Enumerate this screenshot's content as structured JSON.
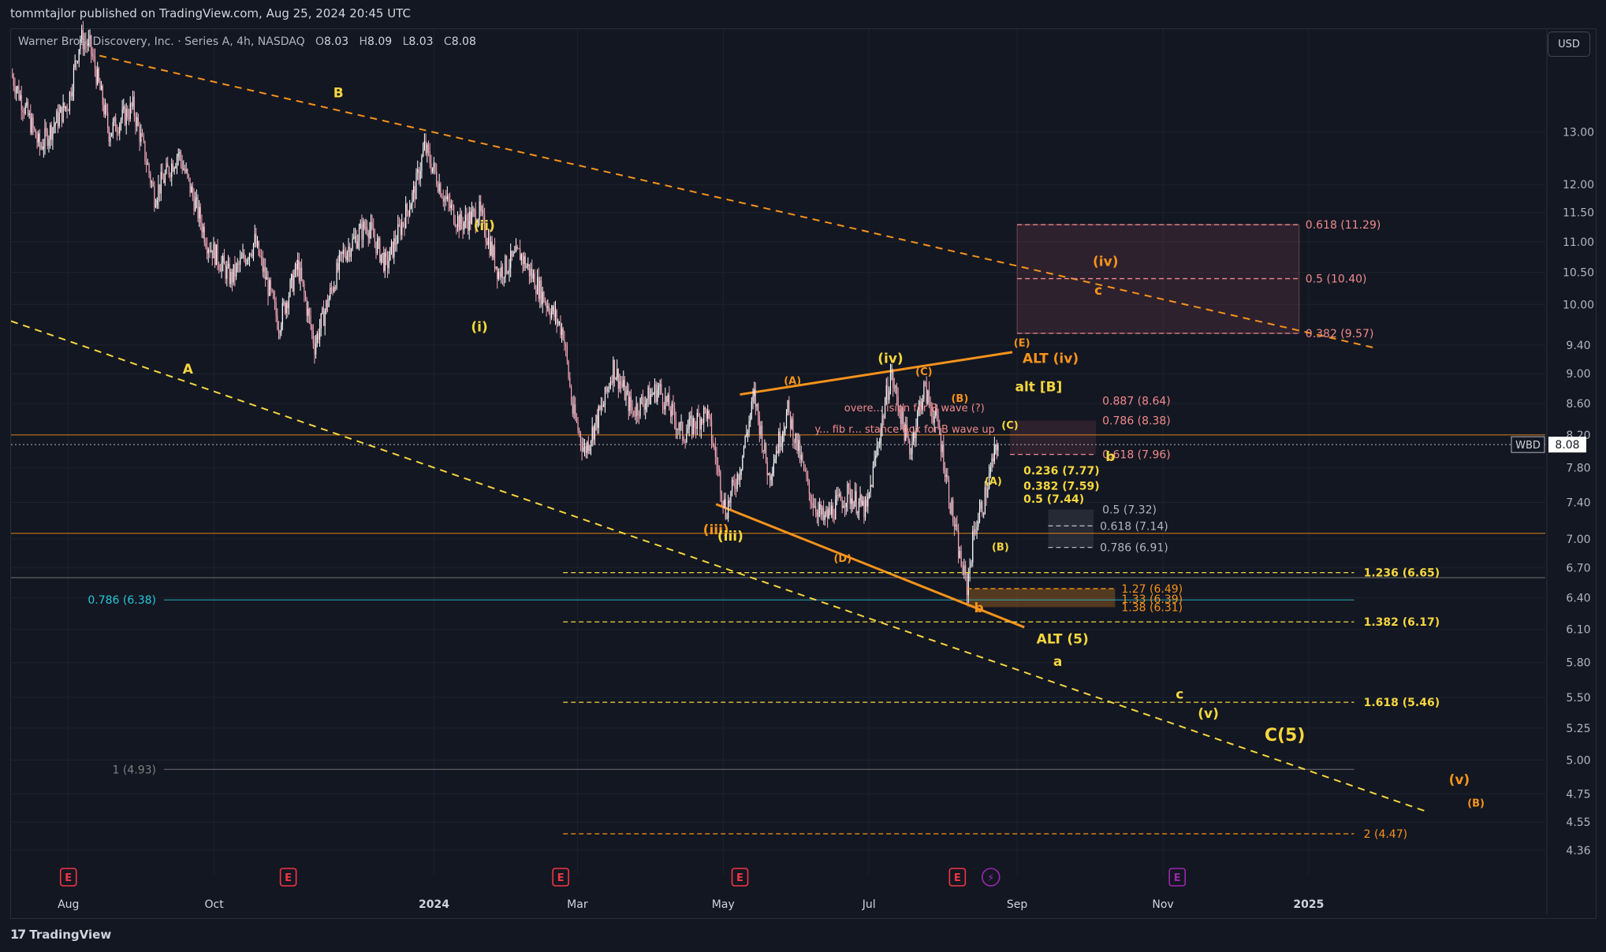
{
  "header": {
    "published_by": "tommtajlor published on TradingView.com, Aug 25, 2024 20:45 UTC"
  },
  "symbol": {
    "name": "Warner Bros. Discovery, Inc. · Series A, 4h, NASDAQ",
    "o_label": "O",
    "o": "8.03",
    "h_label": "H",
    "h": "8.09",
    "l_label": "L",
    "l": "8.03",
    "c_label": "C",
    "c": "8.08"
  },
  "currency": "USD",
  "footer": {
    "brand": "TradingView"
  },
  "colors": {
    "background": "#131722",
    "grid": "#1e222d",
    "candle_up": "#ffffff",
    "candle_down": "#f7a8b8",
    "yellow": "#f5d63d",
    "orange": "#f7931a",
    "fib_red": "#f08a8a",
    "fib_gray": "#b2b5be",
    "cyan": "#26c6da",
    "earnings": "#f23645",
    "dividend": "#9c27b0"
  },
  "chart_data": {
    "type": "candlestick",
    "title": "Warner Bros. Discovery, Inc. · Series A, 4h, NASDAQ",
    "scale": "log",
    "ylim": [
      4.2,
      15.2
    ],
    "current_price": {
      "ticker": "WBD",
      "value": "8.08"
    },
    "y_ticks": [
      "13.00",
      "12.00",
      "11.50",
      "11.00",
      "10.50",
      "10.00",
      "9.40",
      "9.00",
      "8.60",
      "8.20",
      "7.80",
      "7.40",
      "7.00",
      "6.70",
      "6.40",
      "6.10",
      "5.80",
      "5.50",
      "5.25",
      "5.00",
      "4.75",
      "4.55",
      "4.36"
    ],
    "x_ticks": [
      {
        "label": "Aug",
        "date": "2023-08-01"
      },
      {
        "label": "Oct",
        "date": "2023-10-01"
      },
      {
        "label": "2024",
        "date": "2024-01-01"
      },
      {
        "label": "Mar",
        "date": "2024-03-01"
      },
      {
        "label": "May",
        "date": "2024-05-01"
      },
      {
        "label": "Jul",
        "date": "2024-07-01"
      },
      {
        "label": "Sep",
        "date": "2024-09-01"
      },
      {
        "label": "Nov",
        "date": "2024-11-01"
      },
      {
        "label": "2025",
        "date": "2025-01-01"
      }
    ],
    "price_path": [
      [
        "2023-07-08",
        14.2
      ],
      [
        "2023-07-20",
        12.7
      ],
      [
        "2023-08-01",
        13.6
      ],
      [
        "2023-08-06",
        15.0
      ],
      [
        "2023-08-10",
        14.8
      ],
      [
        "2023-08-18",
        13.0
      ],
      [
        "2023-08-28",
        13.5
      ],
      [
        "2023-09-06",
        11.8
      ],
      [
        "2023-09-16",
        12.6
      ],
      [
        "2023-09-28",
        11.0
      ],
      [
        "2023-10-08",
        10.4
      ],
      [
        "2023-10-18",
        11.0
      ],
      [
        "2023-10-28",
        9.7
      ],
      [
        "2023-11-05",
        10.6
      ],
      [
        "2023-11-12",
        9.4
      ],
      [
        "2023-11-24",
        10.8
      ],
      [
        "2023-12-04",
        11.3
      ],
      [
        "2023-12-12",
        10.6
      ],
      [
        "2023-12-24",
        11.9
      ],
      [
        "2023-12-28",
        12.7
      ],
      [
        "2024-01-06",
        11.7
      ],
      [
        "2024-01-12",
        11.3
      ],
      [
        "2024-01-20",
        11.5
      ],
      [
        "2024-01-28",
        10.5
      ],
      [
        "2024-02-06",
        10.8
      ],
      [
        "2024-02-16",
        10.1
      ],
      [
        "2024-02-24",
        9.6
      ],
      [
        "2024-02-28",
        8.5
      ],
      [
        "2024-03-04",
        8.0
      ],
      [
        "2024-03-12",
        8.6
      ],
      [
        "2024-03-16",
        9.1
      ],
      [
        "2024-03-24",
        8.5
      ],
      [
        "2024-04-04",
        8.8
      ],
      [
        "2024-04-14",
        8.2
      ],
      [
        "2024-04-24",
        8.5
      ],
      [
        "2024-05-02",
        7.3
      ],
      [
        "2024-05-08",
        7.8
      ],
      [
        "2024-05-14",
        8.7
      ],
      [
        "2024-05-20",
        7.7
      ],
      [
        "2024-05-28",
        8.5
      ],
      [
        "2024-06-06",
        7.5
      ],
      [
        "2024-06-12",
        7.2
      ],
      [
        "2024-06-22",
        7.5
      ],
      [
        "2024-06-30",
        7.3
      ],
      [
        "2024-07-06",
        8.3
      ],
      [
        "2024-07-10",
        9.0
      ],
      [
        "2024-07-18",
        8.0
      ],
      [
        "2024-07-24",
        8.8
      ],
      [
        "2024-07-30",
        8.3
      ],
      [
        "2024-08-04",
        7.4
      ],
      [
        "2024-08-08",
        6.8
      ],
      [
        "2024-08-11",
        6.5
      ],
      [
        "2024-08-14",
        7.1
      ],
      [
        "2024-08-18",
        7.4
      ],
      [
        "2024-08-22",
        7.9
      ],
      [
        "2024-08-24",
        8.08
      ]
    ],
    "trend_lines": [
      {
        "from": [
          "2023-08-14",
          14.6
        ],
        "to": [
          "2025-01-30",
          9.35
        ],
        "color": "orange",
        "style": "dashed"
      },
      {
        "from": [
          "2023-07-08",
          9.75
        ],
        "to": [
          "2025-02-20",
          4.62
        ],
        "color": "yellow",
        "style": "dashed"
      },
      {
        "from": [
          "2024-05-08",
          8.72
        ],
        "to": [
          "2024-08-30",
          9.3
        ],
        "color": "orange",
        "style": "solid"
      },
      {
        "from": [
          "2024-04-28",
          7.38
        ],
        "to": [
          "2024-09-04",
          6.12
        ],
        "color": "orange",
        "style": "solid"
      }
    ],
    "horizontal_lines": [
      {
        "value": 8.2,
        "color": "orange"
      },
      {
        "value": 7.06,
        "color": "orange"
      },
      {
        "value": 6.6,
        "color": "gray"
      },
      {
        "value": 6.38,
        "color": "cyan",
        "label": "0.786 (6.38)"
      },
      {
        "value": 4.93,
        "color": "gray",
        "label": "1 (4.93)"
      }
    ],
    "fib_levels": [
      {
        "label": "0.618 (11.29)",
        "value": 11.29,
        "color": "fib_red"
      },
      {
        "label": "0.5 (10.40)",
        "value": 10.4,
        "color": "fib_red"
      },
      {
        "label": "0.382 (9.57)",
        "value": 9.57,
        "color": "fib_red"
      },
      {
        "label": "0.887 (8.64)",
        "value": 8.64,
        "color": "fib_red"
      },
      {
        "label": "0.786 (8.38)",
        "value": 8.38,
        "color": "fib_red"
      },
      {
        "label": "0.618 (7.96)",
        "value": 7.96,
        "color": "fib_red"
      },
      {
        "label": "0.236 (7.77)",
        "value": 7.77,
        "color": "yellow"
      },
      {
        "label": "0.382 (7.59)",
        "value": 7.59,
        "color": "yellow"
      },
      {
        "label": "0.5 (7.44)",
        "value": 7.44,
        "color": "yellow"
      },
      {
        "label": "0.5 (7.32)",
        "value": 7.32,
        "color": "fib_gray"
      },
      {
        "label": "0.618 (7.14)",
        "value": 7.14,
        "color": "fib_gray"
      },
      {
        "label": "0.786 (6.91)",
        "value": 6.91,
        "color": "fib_gray"
      },
      {
        "label": "1.236 (6.65)",
        "value": 6.65,
        "color": "yellow"
      },
      {
        "label": "1.27 (6.49)",
        "value": 6.49,
        "color": "orange"
      },
      {
        "label": "1.33 (6.39)",
        "value": 6.39,
        "color": "orange"
      },
      {
        "label": "1.38 (6.31)",
        "value": 6.31,
        "color": "orange"
      },
      {
        "label": "1.382 (6.17)",
        "value": 6.17,
        "color": "yellow"
      },
      {
        "label": "1.618 (5.46)",
        "value": 5.46,
        "color": "yellow"
      },
      {
        "label": "2 (4.47)",
        "value": 4.47,
        "color": "orange"
      }
    ],
    "annotations": [
      {
        "text": "B",
        "date": "2023-11-22",
        "value": 13.7,
        "color": "yellow"
      },
      {
        "text": "A",
        "date": "2023-09-20",
        "value": 9.0,
        "color": "yellow"
      },
      {
        "text": "(ii)",
        "date": "2024-01-22",
        "value": 11.2,
        "color": "yellow"
      },
      {
        "text": "(i)",
        "date": "2024-01-20",
        "value": 9.6,
        "color": "yellow"
      },
      {
        "text": "(iii)",
        "date": "2024-04-28",
        "value": 7.05,
        "color": "orange"
      },
      {
        "text": "(iii)",
        "date": "2024-05-04",
        "value": 6.98,
        "color": "yellow"
      },
      {
        "text": "(iv)",
        "date": "2024-07-10",
        "value": 9.15,
        "color": "yellow"
      },
      {
        "text": "ALT (iv)",
        "date": "2024-09-15",
        "value": 9.15,
        "color": "orange"
      },
      {
        "text": "(iv)",
        "date": "2024-10-08",
        "value": 10.6,
        "color": "orange"
      },
      {
        "text": "c",
        "date": "2024-10-05",
        "value": 10.15,
        "color": "orange"
      },
      {
        "text": "alt [B]",
        "date": "2024-09-10",
        "value": 8.76,
        "color": "yellow"
      },
      {
        "text": "b",
        "date": "2024-10-10",
        "value": 7.88,
        "color": "yellow"
      },
      {
        "text": "ALT (5)",
        "date": "2024-09-20",
        "value": 5.97,
        "color": "yellow"
      },
      {
        "text": "a",
        "date": "2024-09-18",
        "value": 5.77,
        "color": "yellow"
      },
      {
        "text": "b",
        "date": "2024-08-16",
        "value": 6.26,
        "color": "orange"
      },
      {
        "text": "c",
        "date": "2024-11-08",
        "value": 5.49,
        "color": "yellow"
      },
      {
        "text": "(v)",
        "date": "2024-11-20",
        "value": 5.33,
        "color": "yellow"
      },
      {
        "text": "C(5)",
        "date": "2024-12-22",
        "value": 5.15,
        "color": "yellow"
      },
      {
        "text": "(v)",
        "date": "2025-03-05",
        "value": 4.82,
        "color": "orange"
      },
      {
        "text": "(B)",
        "date": "2025-03-12",
        "value": 4.66,
        "color": "orange"
      },
      {
        "text": "(A)",
        "date": "2024-05-30",
        "value": 8.86,
        "color": "orange"
      },
      {
        "text": "(C)",
        "date": "2024-07-24",
        "value": 8.98,
        "color": "orange"
      },
      {
        "text": "(E)",
        "date": "2024-09-03",
        "value": 9.38,
        "color": "orange"
      },
      {
        "text": "(B)",
        "date": "2024-08-08",
        "value": 8.62,
        "color": "orange"
      },
      {
        "text": "(D)",
        "date": "2024-06-20",
        "value": 6.76,
        "color": "orange"
      },
      {
        "text": "(A)",
        "date": "2024-08-22",
        "value": 7.6,
        "color": "yellow"
      },
      {
        "text": "(B)",
        "date": "2024-08-25",
        "value": 6.88,
        "color": "yellow"
      },
      {
        "text": "(C)",
        "date": "2024-08-29",
        "value": 8.28,
        "color": "yellow"
      },
      {
        "text": "overe... ision for B wave (?)",
        "date": "2024-07-20",
        "value": 8.5,
        "color": "fib_red"
      },
      {
        "text": "y... fib r... stance box for B wave up",
        "date": "2024-07-16",
        "value": 8.23,
        "color": "fib_red"
      }
    ],
    "events": [
      {
        "type": "E",
        "date": "2023-08-01"
      },
      {
        "type": "E",
        "date": "2023-11-01"
      },
      {
        "type": "E",
        "date": "2024-02-23"
      },
      {
        "type": "E",
        "date": "2024-05-08"
      },
      {
        "type": "E",
        "date": "2024-08-07"
      },
      {
        "type": "D",
        "date": "2024-08-21"
      },
      {
        "type": "E",
        "date": "2024-11-07"
      }
    ]
  }
}
